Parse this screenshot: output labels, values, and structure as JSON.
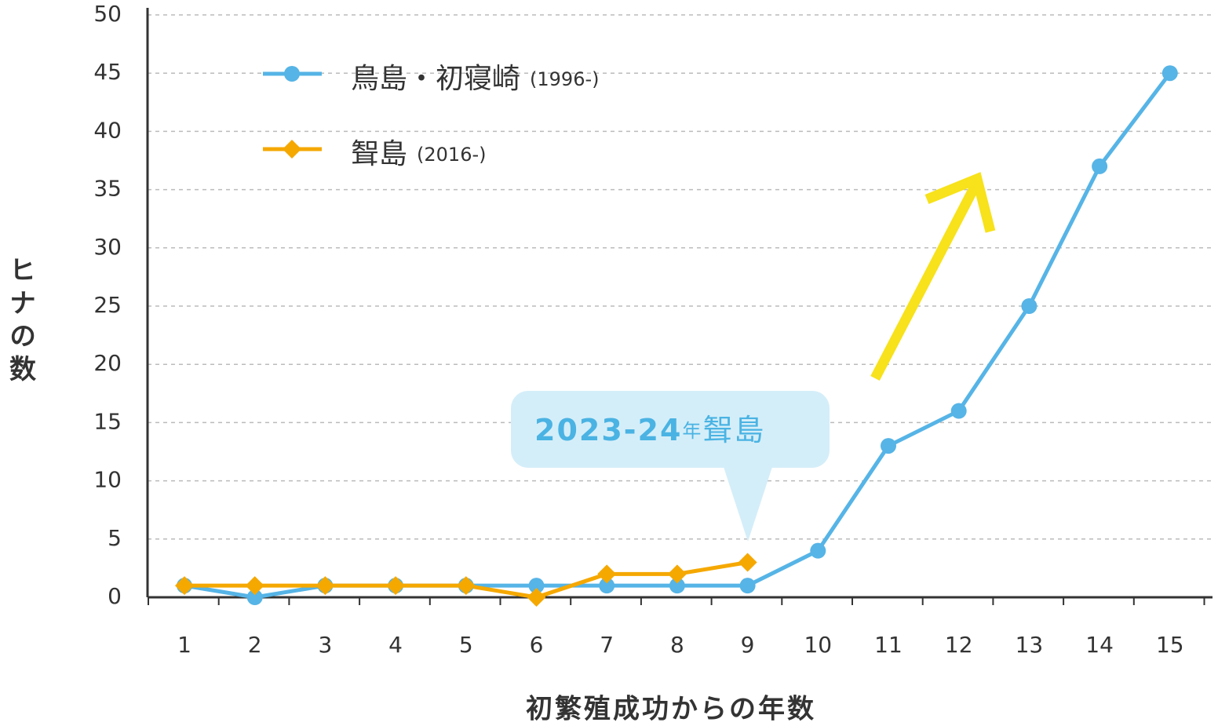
{
  "chart_data": {
    "type": "line",
    "x_label": "初繁殖成功からの年数",
    "y_label": "ヒナの数",
    "categories": [
      "1",
      "2",
      "3",
      "4",
      "5",
      "6",
      "7",
      "8",
      "9",
      "10",
      "11",
      "12",
      "13",
      "14",
      "15"
    ],
    "series": [
      {
        "name": "鳥島・初寝崎",
        "period": "(1996-)",
        "color": "#56b4e6",
        "marker": "circle",
        "values": [
          1,
          0,
          1,
          1,
          1,
          1,
          1,
          1,
          1,
          4,
          13,
          16,
          25,
          37,
          45
        ]
      },
      {
        "name": "聟島",
        "period": "(2016-)",
        "color": "#f5a800",
        "marker": "diamond",
        "values": [
          1,
          1,
          1,
          1,
          1,
          0,
          2,
          2,
          3,
          null,
          null,
          null,
          null,
          null,
          null
        ]
      }
    ],
    "annotation": [
      "2023-24",
      "年",
      "聟島"
    ],
    "ylim": [
      0,
      50
    ],
    "yticks": [
      0,
      5,
      10,
      15,
      20,
      25,
      30,
      35,
      40,
      45,
      50
    ],
    "grid": true
  }
}
